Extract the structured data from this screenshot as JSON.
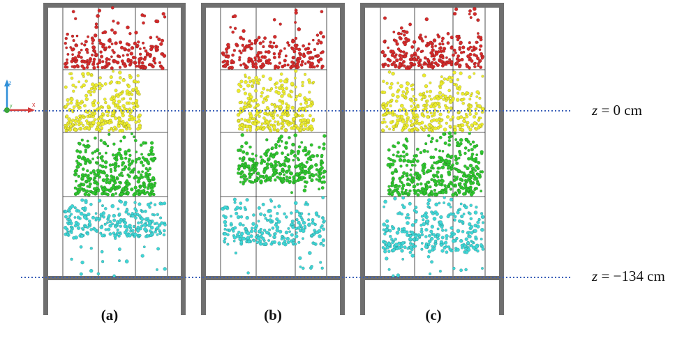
{
  "panels": [
    {
      "id": "a",
      "caption": "(a)"
    },
    {
      "id": "b",
      "caption": "(b)"
    },
    {
      "id": "c",
      "caption": "(c)"
    }
  ],
  "reference_lines": [
    {
      "label_var": "z",
      "label_rest": " = 0 cm"
    },
    {
      "label_var": "z",
      "label_rest": " = −134 cm"
    }
  ],
  "axis_triad": {
    "labels": [
      "z",
      "x",
      "y"
    ],
    "colors": {
      "z": "#2f8fd8",
      "x": "#d23b3b",
      "y": "#3aa63a"
    }
  },
  "layer_colors": {
    "red": "#d42b2b",
    "yellow": "#ecec2e",
    "green": "#2fc62f",
    "cyan": "#3fd6d6"
  },
  "frame_color": "#6f6f6f",
  "dotted_line_color": "#3a5fb8"
}
